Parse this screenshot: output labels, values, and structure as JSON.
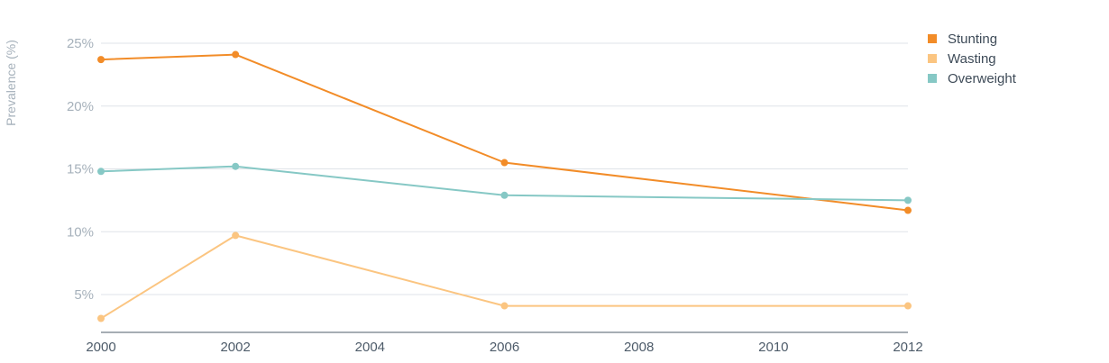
{
  "chart_data": {
    "type": "line",
    "title": "",
    "xlabel": "",
    "ylabel": "Prevalence (%)",
    "x_ticks": [
      "2000",
      "2002",
      "2004",
      "2006",
      "2008",
      "2010",
      "2012"
    ],
    "y_ticks": [
      {
        "value": 5,
        "label": "5%"
      },
      {
        "value": 10,
        "label": "10%"
      },
      {
        "value": 15,
        "label": "15%"
      },
      {
        "value": 20,
        "label": "20%"
      },
      {
        "value": 25,
        "label": "25%"
      }
    ],
    "xlim": [
      2000,
      2012
    ],
    "ylim": [
      2,
      25
    ],
    "grid": true,
    "legend_position": "top-right",
    "series": [
      {
        "name": "Stunting",
        "color": "#f28c28",
        "x": [
          2000,
          2002,
          2006,
          2012
        ],
        "y": [
          23.7,
          24.1,
          15.5,
          11.7
        ]
      },
      {
        "name": "Wasting",
        "color": "#fbc581",
        "x": [
          2000,
          2002,
          2006,
          2012
        ],
        "y": [
          3.1,
          9.7,
          4.1,
          4.1
        ]
      },
      {
        "name": "Overweight",
        "color": "#86c8c5",
        "x": [
          2000,
          2002,
          2006,
          2012
        ],
        "y": [
          14.8,
          15.2,
          12.9,
          12.5
        ]
      }
    ]
  }
}
